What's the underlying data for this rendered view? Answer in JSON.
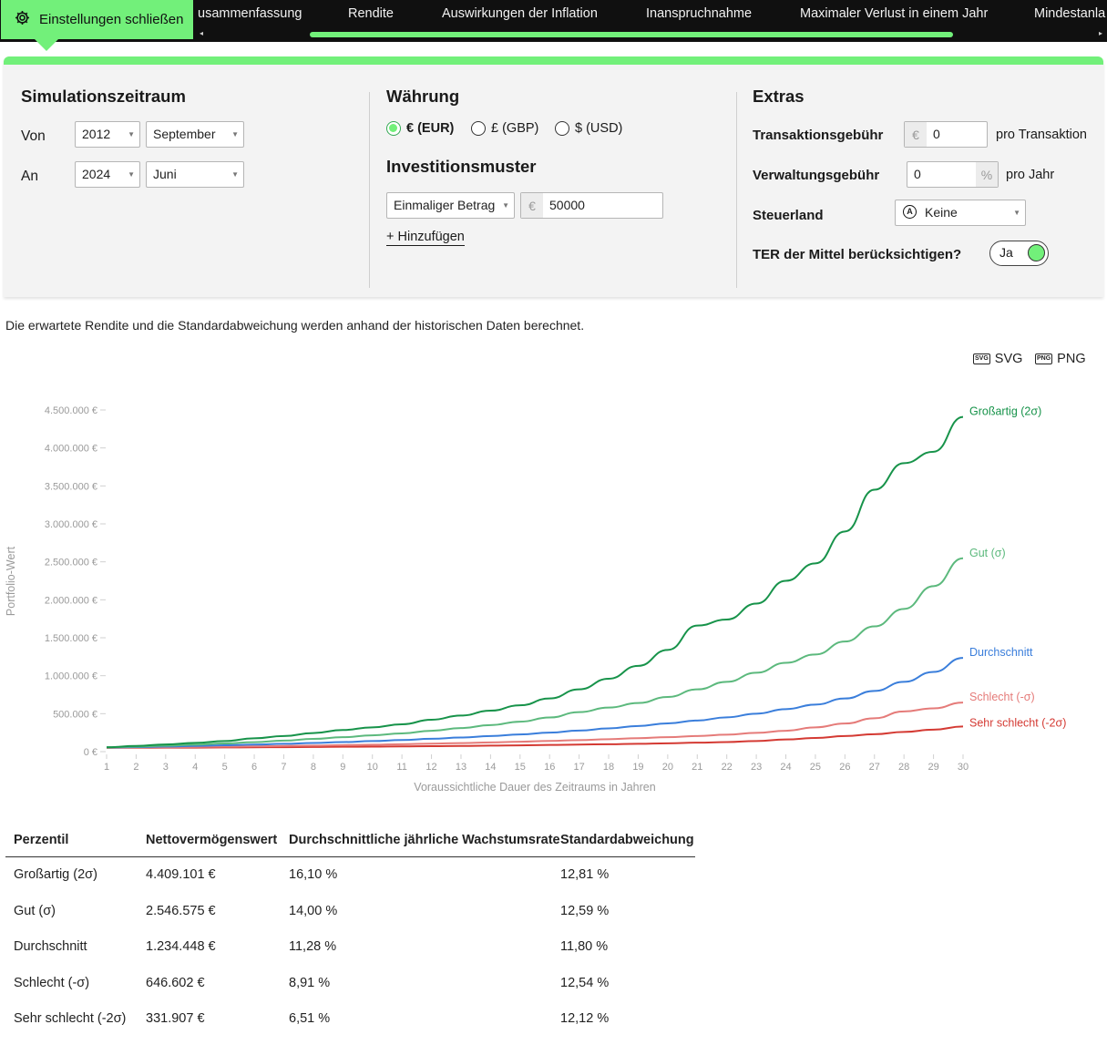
{
  "nav": {
    "close_label": "Einstellungen schließen",
    "tabs": [
      "usammenfassung",
      "Rendite",
      "Auswirkungen der Inflation",
      "Inanspruchnahme",
      "Maximaler Verlust in einem Jahr",
      "Mindestanla"
    ],
    "scroll_left": "◂",
    "scroll_right": "▸"
  },
  "settings": {
    "period": {
      "title": "Simulationszeitraum",
      "from_label": "Von",
      "from_year": "2012",
      "from_month": "September",
      "to_label": "An",
      "to_year": "2024",
      "to_month": "Juni"
    },
    "currency": {
      "title": "Währung",
      "options": [
        "€ (EUR)",
        "£ (GBP)",
        "$ (USD)"
      ],
      "selected": "€ (EUR)"
    },
    "investment": {
      "title": "Investitionsmuster",
      "type": "Einmaliger Betrag",
      "currency_symbol": "€",
      "amount": "50000",
      "add_label": "+ Hinzufügen"
    },
    "extras": {
      "title": "Extras",
      "tx_fee_label": "Transaktionsgebühr",
      "tx_fee_symbol": "€",
      "tx_fee_value": "0",
      "tx_fee_suffix": "pro Transaktion",
      "mgmt_fee_label": "Verwaltungsgebühr",
      "mgmt_fee_value": "0",
      "mgmt_fee_symbol": "%",
      "mgmt_fee_suffix": "pro Jahr",
      "tax_label": "Steuerland",
      "tax_value": "Keine",
      "ter_label": "TER der Mittel berücksichtigen?",
      "ter_value": "Ja"
    }
  },
  "description": "Die erwartete Rendite und die Standardabweichung werden anhand der historischen Daten berechnet.",
  "export": {
    "svg": "SVG",
    "png": "PNG",
    "svg_icon": "svg-file-icon",
    "png_icon": "png-file-icon"
  },
  "colors": {
    "accent": "#72f07a",
    "great": "#17934a",
    "good": "#5cb97d",
    "average": "#3a7edb",
    "bad": "#e57b79",
    "very_bad": "#d43a33"
  },
  "chart_data": {
    "type": "line",
    "xlabel": "Voraussichtliche Dauer des Zeitraums in Jahren",
    "ylabel": "Portfolio-Wert",
    "ylim": [
      0,
      4500000
    ],
    "yticks": [
      0,
      500000,
      1000000,
      1500000,
      2000000,
      2500000,
      3000000,
      3500000,
      4000000,
      4500000
    ],
    "ytick_labels": [
      "0 €",
      "500.000 €",
      "1.000.000 €",
      "1.500.000 €",
      "2.000.000 €",
      "2.500.000 €",
      "3.000.000 €",
      "3.500.000 €",
      "4.000.000 €",
      "4.500.000 €"
    ],
    "x": [
      1,
      2,
      3,
      4,
      5,
      6,
      7,
      8,
      9,
      10,
      11,
      12,
      13,
      14,
      15,
      16,
      17,
      18,
      19,
      20,
      21,
      22,
      23,
      24,
      25,
      26,
      27,
      28,
      29,
      30
    ],
    "grid": false,
    "legend": "inline-right",
    "series": [
      {
        "name": "Großartig (2σ)",
        "color_key": "great",
        "values": [
          58000,
          75000,
          95000,
          115000,
          140000,
          175000,
          205000,
          245000,
          285000,
          320000,
          360000,
          420000,
          475000,
          540000,
          610000,
          700000,
          820000,
          960000,
          1130000,
          1340000,
          1660000,
          1740000,
          1950000,
          2250000,
          2480000,
          2900000,
          3450000,
          3800000,
          3950000,
          4409101
        ]
      },
      {
        "name": "Gut (σ)",
        "color_key": "good",
        "values": [
          56000,
          66000,
          78000,
          92000,
          108000,
          125000,
          145000,
          168000,
          190000,
          215000,
          240000,
          275000,
          310000,
          350000,
          395000,
          450000,
          520000,
          580000,
          640000,
          720000,
          820000,
          920000,
          1040000,
          1170000,
          1280000,
          1450000,
          1650000,
          1880000,
          2180000,
          2546575
        ]
      },
      {
        "name": "Durchschnitt",
        "color_key": "average",
        "values": [
          54000,
          60000,
          67000,
          75000,
          84000,
          93000,
          103000,
          114000,
          126000,
          139000,
          153000,
          169000,
          186000,
          205000,
          226000,
          250000,
          277000,
          306000,
          338000,
          372000,
          410000,
          452000,
          500000,
          560000,
          620000,
          700000,
          800000,
          920000,
          1050000,
          1234448
        ]
      },
      {
        "name": "Schlecht (-σ)",
        "color_key": "bad",
        "values": [
          52000,
          55000,
          58000,
          62000,
          66000,
          70000,
          75000,
          80000,
          86000,
          92000,
          98000,
          105000,
          113000,
          122000,
          131000,
          141000,
          152000,
          164000,
          177000,
          191000,
          206000,
          223000,
          248000,
          275000,
          320000,
          370000,
          440000,
          530000,
          570000,
          646602
        ]
      },
      {
        "name": "Sehr schlecht (-2σ)",
        "color_key": "very_bad",
        "values": [
          50000,
          51000,
          52000,
          53000,
          55000,
          57000,
          59000,
          61000,
          64000,
          66000,
          69000,
          72000,
          75000,
          79000,
          83000,
          88000,
          93000,
          98000,
          104000,
          110000,
          118000,
          126000,
          140000,
          160000,
          180000,
          205000,
          230000,
          260000,
          290000,
          331907
        ]
      }
    ]
  },
  "table": {
    "headers": [
      "Perzentil",
      "Nettovermögenswert",
      "Durchschnittliche jährliche Wachstumsrate",
      "Standardabweichung"
    ],
    "rows": [
      [
        "Großartig (2σ)",
        "4.409.101 €",
        "16,10 %",
        "12,81 %"
      ],
      [
        "Gut (σ)",
        "2.546.575 €",
        "14,00 %",
        "12,59 %"
      ],
      [
        "Durchschnitt",
        "1.234.448 €",
        "11,28 %",
        "11,80 %"
      ],
      [
        "Schlecht (-σ)",
        "646.602 €",
        "8,91 %",
        "12,54 %"
      ],
      [
        "Sehr schlecht (-2σ)",
        "331.907 €",
        "6,51 %",
        "12,12 %"
      ]
    ]
  }
}
